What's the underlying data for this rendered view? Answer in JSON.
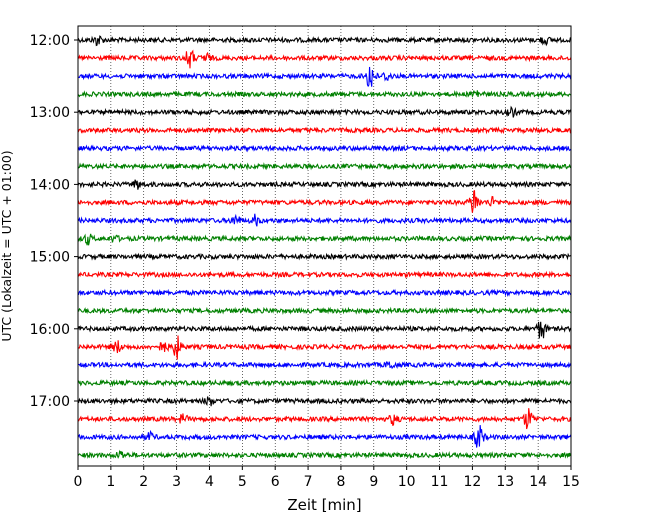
{
  "chart_data": {
    "type": "line",
    "title": "",
    "xlabel": "Zeit  [min]",
    "ylabel": "UTC (Lokalzeit = UTC + 01:00)",
    "xlim": [
      0,
      15
    ],
    "x_ticks": [
      "0",
      "1",
      "2",
      "3",
      "4",
      "5",
      "6",
      "7",
      "8",
      "9",
      "10",
      "11",
      "12",
      "13",
      "14",
      "15"
    ],
    "y_ticks": [
      "12:00",
      "13:00",
      "14:00",
      "15:00",
      "16:00",
      "17:00"
    ],
    "grid": "vertical dotted lines at each minute",
    "legend": "none",
    "trace_interval_minutes": 15,
    "colors_cycle": [
      "#000000",
      "#ff0000",
      "#0000ff",
      "#008000"
    ],
    "series": [
      {
        "start": "12:00",
        "color": "#000000",
        "bursts": [
          {
            "x": 0.6,
            "amp": 0.35
          },
          {
            "x": 14.2,
            "amp": 0.25
          }
        ]
      },
      {
        "start": "12:15",
        "color": "#ff0000",
        "bursts": [
          {
            "x": 3.4,
            "amp": 0.7
          },
          {
            "x": 3.9,
            "amp": 0.3
          }
        ]
      },
      {
        "start": "12:30",
        "color": "#0000ff",
        "bursts": [
          {
            "x": 8.9,
            "amp": 1.0
          },
          {
            "x": 9.4,
            "amp": 0.3
          }
        ]
      },
      {
        "start": "12:45",
        "color": "#008000",
        "bursts": [
          {
            "x": 12.1,
            "amp": 0.3
          }
        ]
      },
      {
        "start": "13:00",
        "color": "#000000",
        "bursts": [
          {
            "x": 13.2,
            "amp": 0.25
          }
        ]
      },
      {
        "start": "13:15",
        "color": "#ff0000",
        "bursts": []
      },
      {
        "start": "13:30",
        "color": "#0000ff",
        "bursts": []
      },
      {
        "start": "13:45",
        "color": "#008000",
        "bursts": []
      },
      {
        "start": "14:00",
        "color": "#000000",
        "bursts": [
          {
            "x": 1.8,
            "amp": 0.3
          }
        ]
      },
      {
        "start": "14:15",
        "color": "#ff0000",
        "bursts": [
          {
            "x": 12.05,
            "amp": 1.0
          },
          {
            "x": 12.6,
            "amp": 0.3
          }
        ]
      },
      {
        "start": "14:30",
        "color": "#0000ff",
        "bursts": [
          {
            "x": 4.8,
            "amp": 0.35
          },
          {
            "x": 5.4,
            "amp": 0.35
          }
        ]
      },
      {
        "start": "14:45",
        "color": "#008000",
        "bursts": [
          {
            "x": 0.3,
            "amp": 0.35
          },
          {
            "x": 1.1,
            "amp": 0.2
          }
        ]
      },
      {
        "start": "15:00",
        "color": "#000000",
        "bursts": []
      },
      {
        "start": "15:15",
        "color": "#ff0000",
        "bursts": []
      },
      {
        "start": "15:30",
        "color": "#0000ff",
        "bursts": []
      },
      {
        "start": "15:45",
        "color": "#008000",
        "bursts": []
      },
      {
        "start": "16:00",
        "color": "#000000",
        "bursts": [
          {
            "x": 14.1,
            "amp": 0.75
          }
        ]
      },
      {
        "start": "16:15",
        "color": "#ff0000",
        "bursts": [
          {
            "x": 1.2,
            "amp": 0.4
          },
          {
            "x": 2.6,
            "amp": 0.35
          },
          {
            "x": 3.0,
            "amp": 0.8
          }
        ]
      },
      {
        "start": "16:30",
        "color": "#0000ff",
        "bursts": [
          {
            "x": 9.5,
            "amp": 0.25
          }
        ]
      },
      {
        "start": "16:45",
        "color": "#008000",
        "bursts": []
      },
      {
        "start": "17:00",
        "color": "#000000",
        "bursts": [
          {
            "x": 4.0,
            "amp": 0.3
          }
        ]
      },
      {
        "start": "17:15",
        "color": "#ff0000",
        "bursts": [
          {
            "x": 3.2,
            "amp": 0.3
          },
          {
            "x": 9.6,
            "amp": 0.35
          },
          {
            "x": 13.7,
            "amp": 0.75
          }
        ]
      },
      {
        "start": "17:30",
        "color": "#0000ff",
        "bursts": [
          {
            "x": 2.2,
            "amp": 0.25
          },
          {
            "x": 12.2,
            "amp": 0.9
          }
        ]
      },
      {
        "start": "17:45",
        "color": "#008000",
        "bursts": [
          {
            "x": 1.3,
            "amp": 0.25
          }
        ]
      }
    ]
  }
}
